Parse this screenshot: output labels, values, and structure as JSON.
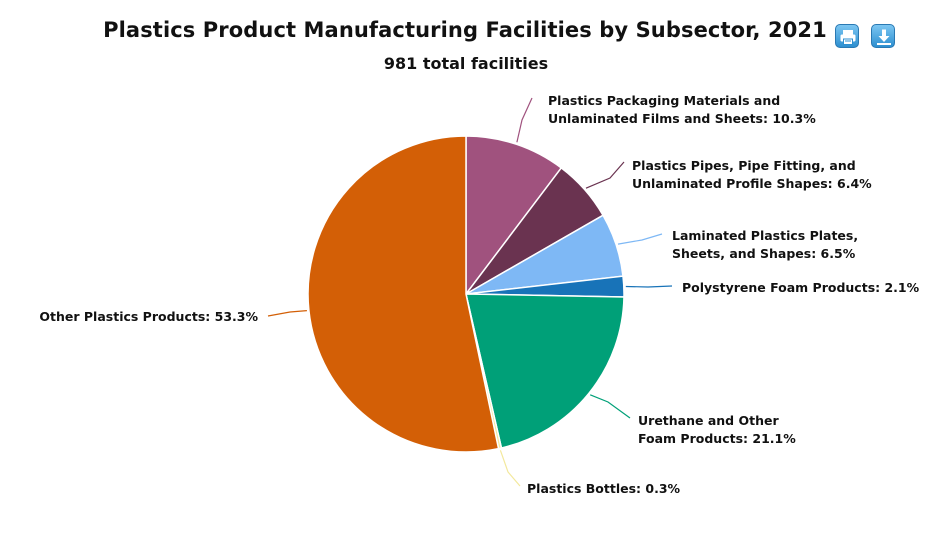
{
  "header": {
    "title": "Plastics Product Manufacturing Facilities by Subsector, 2021",
    "subtitle": "981 total facilities",
    "buttons": [
      {
        "name": "print-icon",
        "color": "#2d8fd0"
      },
      {
        "name": "download-icon",
        "color": "#2d8fd0"
      }
    ]
  },
  "chart_data": {
    "type": "pie",
    "title": "Plastics Product Manufacturing Facilities by Subsector, 2021",
    "subtitle": "981 total facilities",
    "slices": [
      {
        "name": "Plastics Packaging Materials and Unlaminated Films and Sheets",
        "label_lines": [
          "Plastics Packaging Materials and",
          "Unlaminated Films and Sheets: 10.3%"
        ],
        "value": 10.3,
        "color": "#a0527e"
      },
      {
        "name": "Plastics Pipes, Pipe Fitting, and Unlaminated Profile Shapes",
        "label_lines": [
          "Plastics Pipes, Pipe Fitting, and",
          "Unlaminated Profile Shapes: 6.4%"
        ],
        "value": 6.4,
        "color": "#6a3350"
      },
      {
        "name": "Laminated Plastics Plates, Sheets, and Shapes",
        "label_lines": [
          "Laminated Plastics Plates,",
          "Sheets, and Shapes: 6.5%"
        ],
        "value": 6.5,
        "color": "#7eb8f5"
      },
      {
        "name": "Polystyrene Foam Products",
        "label_lines": [
          "Polystyrene Foam Products: 2.1%"
        ],
        "value": 2.1,
        "color": "#1873b8"
      },
      {
        "name": "Urethane and Other Foam Products",
        "label_lines": [
          "Urethane and Other",
          "Foam Products: 21.1%"
        ],
        "value": 21.1,
        "color": "#00a078"
      },
      {
        "name": "Plastics Bottles",
        "label_lines": [
          "Plastics Bottles: 0.3%"
        ],
        "value": 0.3,
        "color": "#f3e89c"
      },
      {
        "name": "Other Plastics Products",
        "label_lines": [
          "Other Plastics Products: 53.3%"
        ],
        "value": 53.3,
        "color": "#d35f06"
      }
    ],
    "legend": "none"
  }
}
